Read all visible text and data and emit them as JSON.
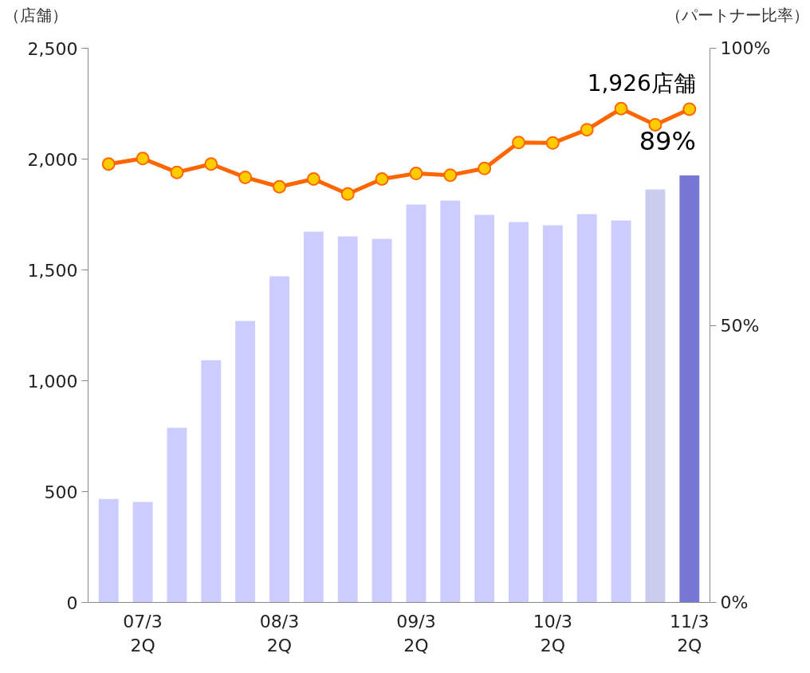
{
  "chart_data": {
    "type": "bar",
    "ylabel": "（店舗）",
    "y2label": "（パートナー比率）",
    "categories": [
      null,
      "07/3\n2Q",
      null,
      null,
      null,
      "08/3\n2Q",
      null,
      null,
      null,
      "09/3\n2Q",
      null,
      null,
      null,
      "10/3\n2Q",
      null,
      null,
      null,
      "11/3\n2Q"
    ],
    "series": [
      {
        "colors": [
          "#ccccff",
          "#ccccff",
          "#ccccff",
          "#ccccff",
          "#ccccff",
          "#ccccff",
          "#ccccff",
          "#ccccff",
          "#ccccff",
          "#ccccff",
          "#ccccff",
          "#ccccff",
          "#ccccff",
          "#ccccff",
          "#ccccff",
          "#ccccff",
          "#ccccee",
          "#7777d4"
        ],
        "values": [
          467,
          453,
          788,
          1093,
          1270,
          1471,
          1673,
          1651,
          1640,
          1795,
          1813,
          1748,
          1716,
          1701,
          1752,
          1723,
          1863,
          1926
        ]
      },
      {
        "type": "line",
        "axis": "y2",
        "color": "#ff6600",
        "marker": "circle",
        "values": [
          79.1,
          80.1,
          77.6,
          79.1,
          76.7,
          75.0,
          76.4,
          73.7,
          76.4,
          77.4,
          77.1,
          78.3,
          83.0,
          82.9,
          85.3,
          89.1,
          86.2,
          89
        ]
      }
    ],
    "ylim": [
      0,
      2500
    ],
    "yticks": [
      {
        "value": 0,
        "label": "0"
      },
      {
        "value": 500,
        "label": "500"
      },
      {
        "value": 1000,
        "label": "1,000"
      },
      {
        "value": 1500,
        "label": "1,500"
      },
      {
        "value": 2000,
        "label": "2,000"
      },
      {
        "value": 2500,
        "label": "2,500"
      }
    ],
    "y2lim": [
      0,
      100
    ],
    "y2ticks": [
      {
        "value": 0,
        "label": "0%"
      },
      {
        "value": 50,
        "label": "50%"
      },
      {
        "value": 100,
        "label": "100%"
      }
    ],
    "annotations": [
      "1,926店舗",
      "89%"
    ],
    "grid": false
  }
}
